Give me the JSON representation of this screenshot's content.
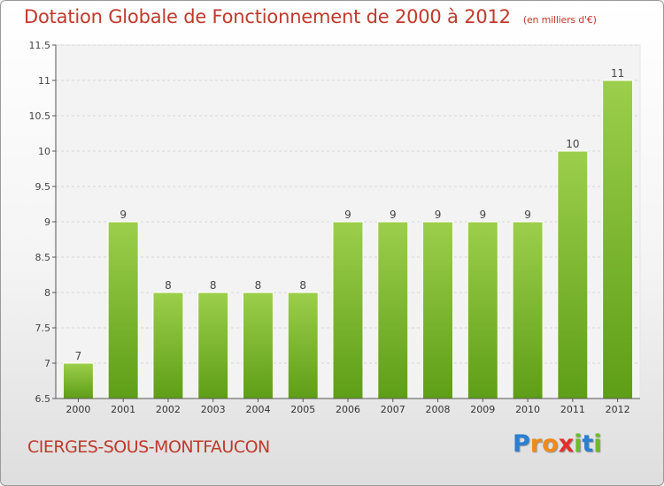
{
  "header": {
    "title": "Dotation Globale de Fonctionnement de 2000 à 2012",
    "subtitle": "(en milliers d'€)"
  },
  "footer": {
    "commune": "CIERGES-SOUS-MONTFAUCON",
    "brand": "Proxiti",
    "brand_letters": [
      {
        "char": "P",
        "color": "#2a7fd1"
      },
      {
        "char": "r",
        "color": "#f08a1c"
      },
      {
        "char": "o",
        "color": "#f08a1c"
      },
      {
        "char": "x",
        "color": "#e0302a"
      },
      {
        "char": "i",
        "color": "#6dbb2a"
      },
      {
        "char": "t",
        "color": "#2a7fd1"
      },
      {
        "char": "i",
        "color": "#6dbb2a"
      }
    ]
  },
  "colors": {
    "bar_top": "#9ccf4b",
    "bar_bottom": "#5e9e16",
    "title": "#c0392b",
    "grid": "#d6d6d6",
    "axis": "#555555"
  },
  "chart_data": {
    "type": "bar",
    "categories": [
      "2000",
      "2001",
      "2002",
      "2003",
      "2004",
      "2005",
      "2006",
      "2007",
      "2008",
      "2009",
      "2010",
      "2011",
      "2012"
    ],
    "values": [
      7,
      9,
      8,
      8,
      8,
      8,
      9,
      9,
      9,
      9,
      9,
      10,
      11
    ],
    "value_labels": [
      "7",
      "9",
      "8",
      "8",
      "8",
      "8",
      "9",
      "9",
      "9",
      "9",
      "9",
      "10",
      "11"
    ],
    "yticks": [
      "6.5",
      "7",
      "7.5",
      "8",
      "8.5",
      "9",
      "9.5",
      "10",
      "10.5",
      "11",
      "11.5"
    ],
    "ylim": [
      6.5,
      11.5
    ],
    "grid": true,
    "legend": "none"
  }
}
